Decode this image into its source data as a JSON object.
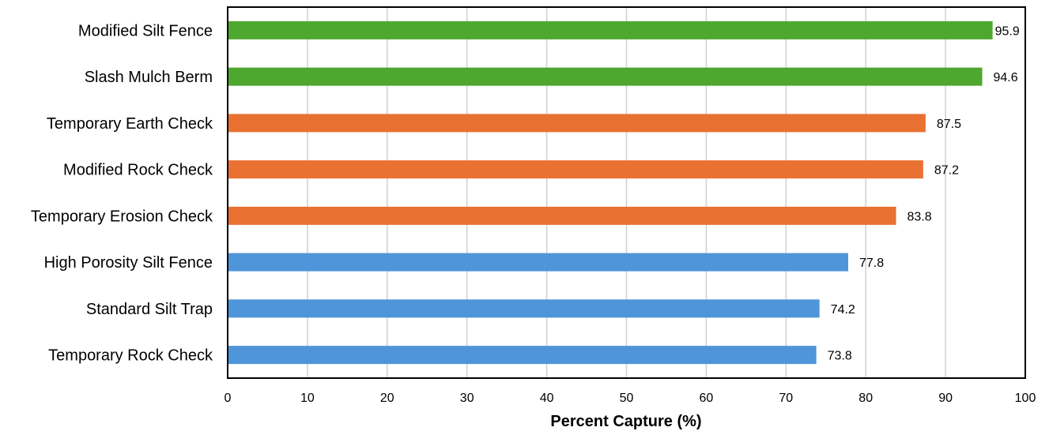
{
  "chart_data": {
    "type": "bar",
    "orientation": "horizontal",
    "title": "",
    "xlabel": "Percent Capture (%)",
    "ylabel": "",
    "xlim": [
      0,
      100
    ],
    "x_ticks": [
      0,
      10,
      20,
      30,
      40,
      50,
      60,
      70,
      80,
      90,
      100
    ],
    "grid": "vertical",
    "legend": "none",
    "categories": [
      "Modified Silt Fence",
      "Slash Mulch Berm",
      "Temporary Earth Check",
      "Modified Rock Check",
      "Temporary Erosion Check",
      "High Porosity Silt Fence",
      "Standard Silt Trap",
      "Temporary Rock Check"
    ],
    "values": [
      95.9,
      94.6,
      87.5,
      87.2,
      83.8,
      77.8,
      74.2,
      73.8
    ],
    "value_labels": [
      "95.9",
      "94.6",
      "87.5",
      "87.2",
      "83.8",
      "77.8",
      "74.2",
      "73.8"
    ],
    "bar_colors": [
      "#4ea72e",
      "#4ea72e",
      "#e97132",
      "#e97132",
      "#e97132",
      "#4f95d9",
      "#4f95d9",
      "#4f95d9"
    ]
  }
}
